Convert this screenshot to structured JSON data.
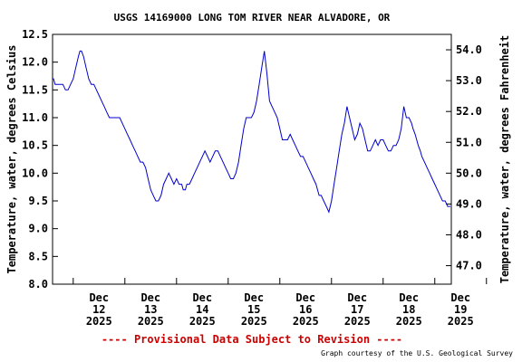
{
  "chart_data": {
    "type": "line",
    "title": "USGS 14169000 LONG TOM RIVER NEAR ALVADORE, OR",
    "ylabel": "Temperature, water, degrees Celsius",
    "y2label": "Temperature, water, degrees Fahrenheit",
    "ylim": [
      8.0,
      12.5
    ],
    "y_ticks": [
      "8.0",
      "8.5",
      "9.0",
      "9.5",
      "10.0",
      "10.5",
      "11.0",
      "11.5",
      "12.0",
      "12.5"
    ],
    "y2_ticks": [
      "47.0",
      "48.0",
      "49.0",
      "50.0",
      "51.0",
      "52.0",
      "53.0",
      "54.0"
    ],
    "xlim": [
      11.6,
      19.32
    ],
    "x_ticks": [
      {
        "day": 12,
        "label": [
          "Dec",
          "12",
          "2025"
        ]
      },
      {
        "day": 13,
        "label": [
          "Dec",
          "13",
          "2025"
        ]
      },
      {
        "day": 14,
        "label": [
          "Dec",
          "14",
          "2025"
        ]
      },
      {
        "day": 15,
        "label": [
          "Dec",
          "15",
          "2025"
        ]
      },
      {
        "day": 16,
        "label": [
          "Dec",
          "16",
          "2025"
        ]
      },
      {
        "day": 17,
        "label": [
          "Dec",
          "17",
          "2025"
        ]
      },
      {
        "day": 18,
        "label": [
          "Dec",
          "18",
          "2025"
        ]
      },
      {
        "day": 19,
        "label": [
          "Dec",
          "19",
          "2025"
        ]
      }
    ],
    "grid": false,
    "line_color": "#0000cc",
    "series": [
      {
        "x": [
          11.6,
          11.62,
          11.65,
          11.8,
          11.85,
          11.9,
          11.95,
          12.0,
          12.05,
          12.1,
          12.13,
          12.16,
          12.2,
          12.25,
          12.3,
          12.35,
          12.4,
          12.45,
          12.5,
          12.55,
          12.6,
          12.65,
          12.7,
          12.75,
          12.8,
          12.85,
          12.9,
          12.95,
          13.0,
          13.05,
          13.1,
          13.15,
          13.2,
          13.25,
          13.3,
          13.35,
          13.4,
          13.45,
          13.5,
          13.55,
          13.6,
          13.65,
          13.7,
          13.75,
          13.8,
          13.85,
          13.9,
          13.95,
          14.0,
          14.05,
          14.1,
          14.13,
          14.17,
          14.2,
          14.25,
          14.3,
          14.35,
          14.4,
          14.45,
          14.5,
          14.55,
          14.6,
          14.65,
          14.7,
          14.75,
          14.8,
          14.85,
          14.9,
          14.95,
          15.0,
          15.05,
          15.1,
          15.15,
          15.2,
          15.25,
          15.3,
          15.35,
          15.4,
          15.45,
          15.5,
          15.55,
          15.6,
          15.65,
          15.7,
          15.75,
          15.8,
          15.85,
          15.9,
          15.95,
          16.0,
          16.05,
          16.1,
          16.15,
          16.2,
          16.25,
          16.3,
          16.35,
          16.4,
          16.45,
          16.5,
          16.55,
          16.6,
          16.65,
          16.7,
          16.73,
          16.76,
          16.8,
          16.85,
          16.9,
          16.95,
          17.0,
          17.05,
          17.1,
          17.15,
          17.2,
          17.25,
          17.3,
          17.35,
          17.4,
          17.45,
          17.5,
          17.55,
          17.6,
          17.65,
          17.7,
          17.75,
          17.8,
          17.85,
          17.9,
          17.95,
          18.0,
          18.05,
          18.1,
          18.15,
          18.2,
          18.25,
          18.3,
          18.35,
          18.4,
          18.45,
          18.5,
          18.55,
          18.58,
          18.62,
          18.65,
          18.68,
          18.72,
          18.75,
          18.8,
          18.85,
          18.9,
          18.95,
          19.0,
          19.05,
          19.1,
          19.15,
          19.2,
          19.25,
          19.3
        ],
        "y": [
          11.7,
          11.7,
          11.6,
          11.6,
          11.5,
          11.5,
          11.6,
          11.7,
          11.9,
          12.1,
          12.2,
          12.2,
          12.1,
          11.9,
          11.7,
          11.6,
          11.6,
          11.5,
          11.4,
          11.3,
          11.2,
          11.1,
          11.0,
          11.0,
          11.0,
          11.0,
          11.0,
          10.9,
          10.8,
          10.7,
          10.6,
          10.5,
          10.4,
          10.3,
          10.2,
          10.2,
          10.1,
          9.9,
          9.7,
          9.6,
          9.5,
          9.5,
          9.6,
          9.8,
          9.9,
          10.0,
          9.9,
          9.8,
          9.9,
          9.8,
          9.8,
          9.7,
          9.7,
          9.8,
          9.8,
          9.9,
          10.0,
          10.1,
          10.2,
          10.3,
          10.4,
          10.3,
          10.2,
          10.3,
          10.4,
          10.4,
          10.3,
          10.2,
          10.1,
          10.0,
          9.9,
          9.9,
          10.0,
          10.2,
          10.5,
          10.8,
          11.0,
          11.0,
          11.0,
          11.1,
          11.3,
          11.6,
          11.9,
          12.2,
          11.8,
          11.3,
          11.2,
          11.1,
          11.0,
          10.8,
          10.6,
          10.6,
          10.6,
          10.7,
          10.6,
          10.5,
          10.4,
          10.3,
          10.3,
          10.2,
          10.1,
          10.0,
          9.9,
          9.8,
          9.7,
          9.6,
          9.6,
          9.5,
          9.4,
          9.3,
          9.5,
          9.8,
          10.1,
          10.4,
          10.7,
          10.9,
          11.2,
          11.0,
          10.8,
          10.6,
          10.7,
          10.9,
          10.8,
          10.6,
          10.4,
          10.4,
          10.5,
          10.6,
          10.5,
          10.6,
          10.6,
          10.5,
          10.4,
          10.4,
          10.5,
          10.5,
          10.6,
          10.8,
          11.2,
          11.0,
          11.0,
          10.9,
          10.8,
          10.7,
          10.6,
          10.5,
          10.4,
          10.3,
          10.2,
          10.1,
          10.0,
          9.9,
          9.8,
          9.7,
          9.6,
          9.5,
          9.5,
          9.4,
          9.4
        ]
      }
    ]
  },
  "footer": {
    "provisional": "---- Provisional Data Subject to Revision ----",
    "credit": "Graph courtesy of the U.S. Geological Survey"
  }
}
